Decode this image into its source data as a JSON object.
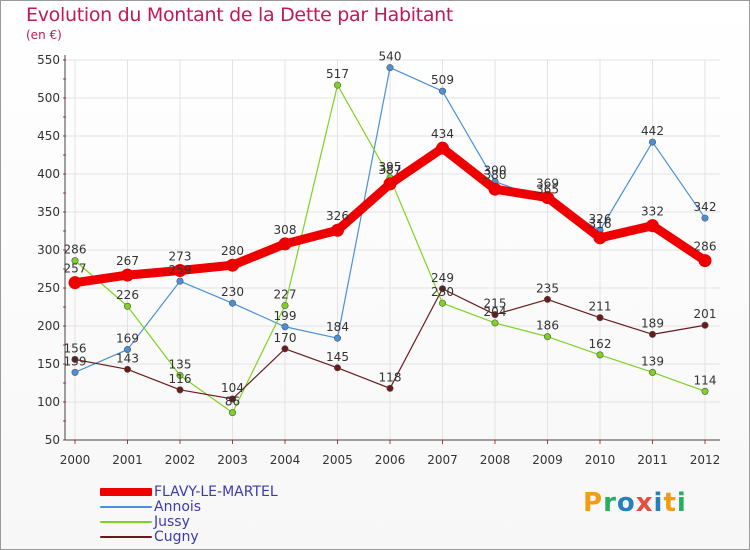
{
  "header": {
    "title": "Evolution du Montant de la Dette par Habitant",
    "unit": "(en €)"
  },
  "logo": {
    "parts": [
      "P",
      "r",
      "o",
      "x",
      "i",
      "t",
      "i"
    ],
    "colors": [
      "#f39c12",
      "#27ae60",
      "#2980b9",
      "#e74c3c",
      "#2980b9",
      "#f39c12",
      "#27ae60"
    ]
  },
  "chart_data": {
    "type": "line",
    "title": "Evolution du Montant de la Dette par Habitant",
    "ylabel": "(en €)",
    "xlabel": "",
    "categories": [
      "2000",
      "2001",
      "2002",
      "2003",
      "2004",
      "2005",
      "2006",
      "2007",
      "2008",
      "2009",
      "2010",
      "2011",
      "2012"
    ],
    "ylim": [
      50,
      550
    ],
    "yticks": [
      "50",
      "100",
      "150",
      "200",
      "250",
      "300",
      "350",
      "400",
      "450",
      "500",
      "550"
    ],
    "grid": true,
    "legend_position": "bottom-left",
    "series": [
      {
        "name": "FLAVY-LE-MARTEL",
        "color": "#ee0000",
        "values": [
          257,
          267,
          273,
          280,
          308,
          326,
          387,
          434,
          380,
          369,
          316,
          332,
          286
        ],
        "labels": [
          "257",
          "267",
          "273",
          "280",
          "308",
          "326",
          "387",
          "434",
          "380",
          "369",
          "316",
          "332",
          "286"
        ]
      },
      {
        "name": "Annois",
        "color": "#4a90d9",
        "values": [
          139,
          169,
          259,
          230,
          199,
          184,
          540,
          509,
          390,
          365,
          326,
          442,
          342
        ],
        "labels": [
          "139",
          "169",
          "259",
          "230",
          "199",
          "184",
          "540",
          "509",
          "390",
          "365",
          "326",
          "442",
          "342"
        ]
      },
      {
        "name": "Jussy",
        "color": "#7ed321",
        "values": [
          286,
          226,
          135,
          86,
          227,
          517,
          395,
          230,
          204,
          186,
          162,
          139,
          114
        ],
        "labels": [
          "286",
          "226",
          "135",
          "86",
          "227",
          "517",
          "395",
          "230",
          "204",
          "186",
          "162",
          "139",
          "114"
        ]
      },
      {
        "name": "Cugny",
        "color": "#6b1a1a",
        "values": [
          156,
          143,
          116,
          104,
          170,
          145,
          118,
          249,
          215,
          235,
          211,
          189,
          201
        ],
        "labels": [
          "156",
          "143",
          "116",
          "104",
          "170",
          "145",
          "118",
          "249",
          "215",
          "235",
          "211",
          "189",
          "201"
        ]
      }
    ]
  }
}
